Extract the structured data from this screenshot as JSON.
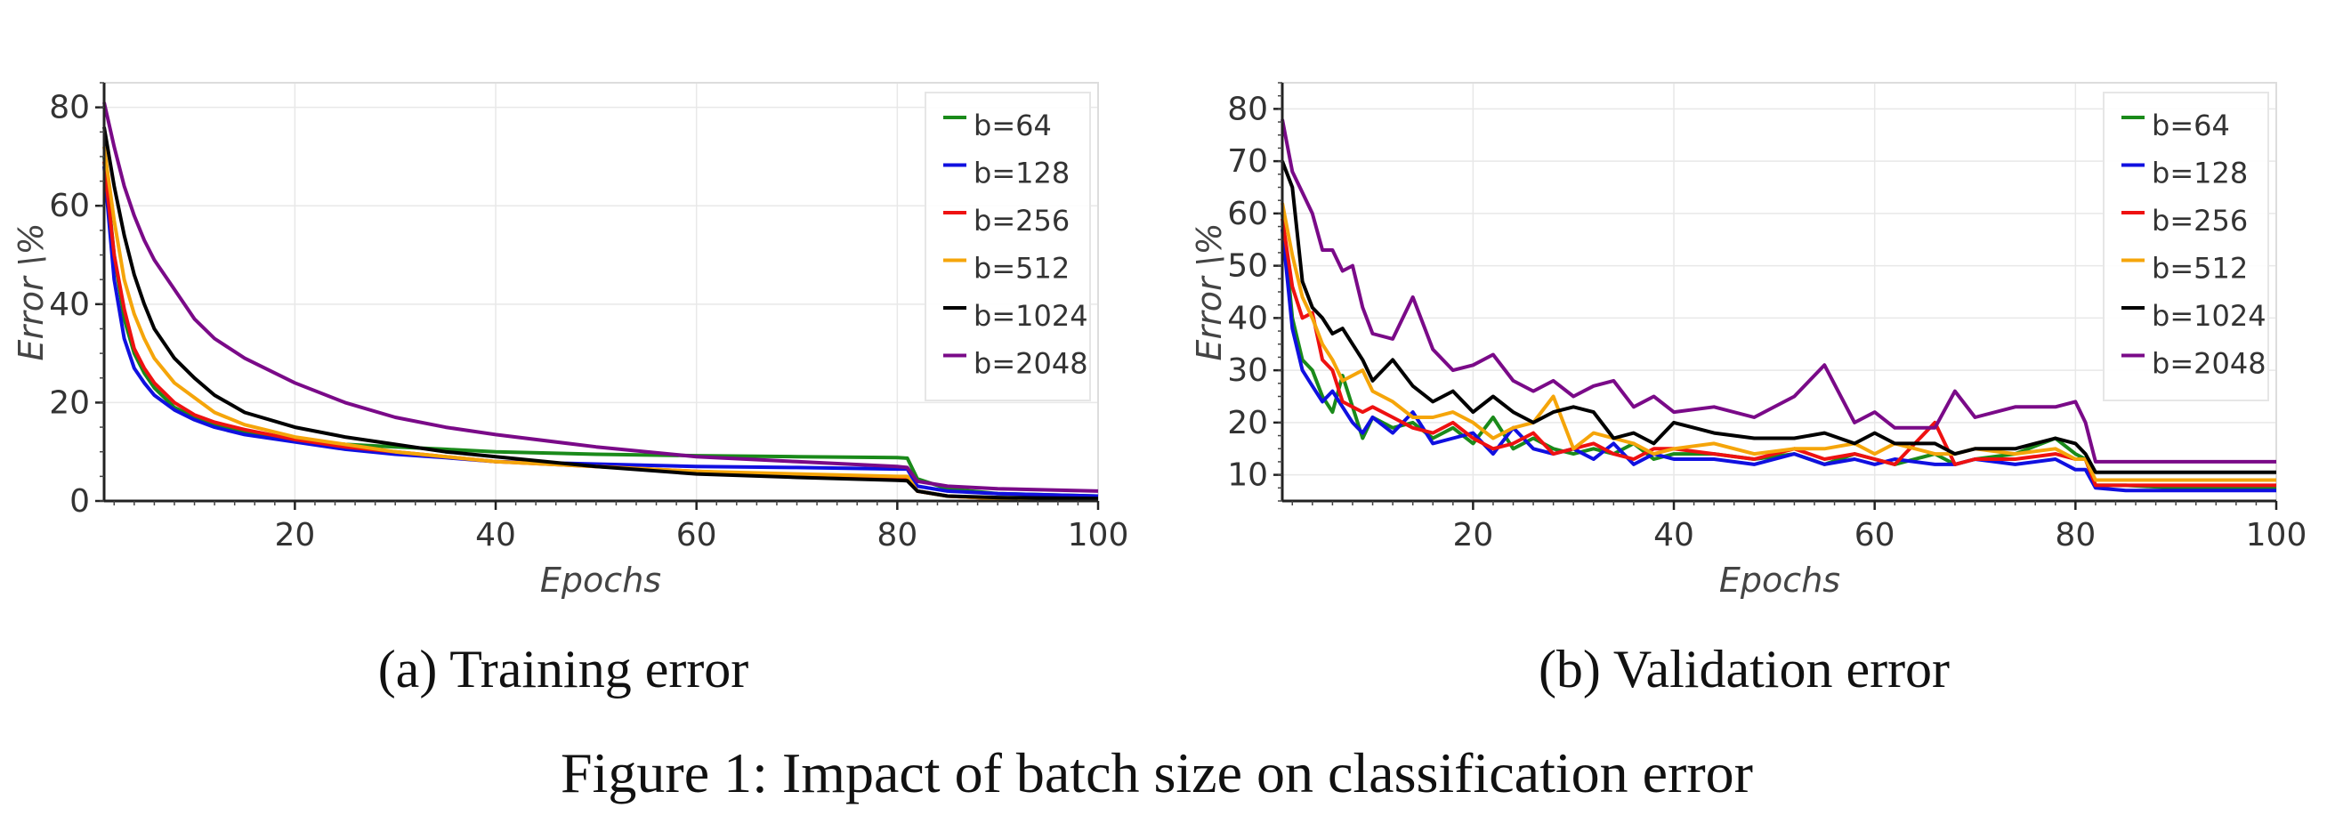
{
  "figure_caption": "Figure 1: Impact of batch size on classification error",
  "colors": {
    "b=64": "#1a8a1a",
    "b=128": "#1010e0",
    "b=256": "#ee1111",
    "b=512": "#f5a50a",
    "b=1024": "#000000",
    "b=2048": "#7a0a88"
  },
  "chart_data": [
    {
      "type": "line",
      "subcaption": "(a) Training error",
      "xlabel": "Epochs",
      "ylabel": "Error \\%",
      "xlim": [
        1,
        100
      ],
      "ylim": [
        0,
        85
      ],
      "xticks": [
        20,
        40,
        60,
        80,
        100
      ],
      "yticks": [
        0,
        20,
        40,
        60,
        80
      ],
      "grid": true,
      "legend_position": "top-right",
      "legend": [
        "b=64",
        "b=128",
        "b=256",
        "b=512",
        "b=1024",
        "b=2048"
      ],
      "x": [
        1,
        2,
        3,
        4,
        5,
        6,
        8,
        10,
        12,
        15,
        20,
        25,
        30,
        35,
        40,
        50,
        60,
        70,
        80,
        81,
        82,
        85,
        90,
        100
      ],
      "series": [
        {
          "name": "b=64",
          "values": [
            70,
            50,
            37,
            30,
            26,
            23,
            19,
            17,
            15.5,
            14,
            12.5,
            11.5,
            11,
            10.5,
            10,
            9.5,
            9.2,
            9,
            8.8,
            8.7,
            4.5,
            2.5,
            1.5,
            1.0
          ]
        },
        {
          "name": "b=128",
          "values": [
            68,
            45,
            33,
            27,
            24,
            21.5,
            18.5,
            16.5,
            15,
            13.5,
            12,
            10.5,
            9.5,
            8.8,
            8,
            7.5,
            7,
            6.8,
            6.5,
            6.5,
            3,
            2,
            1.5,
            1.0
          ]
        },
        {
          "name": "b=256",
          "values": [
            69,
            50,
            39,
            31,
            27,
            24,
            20,
            17.5,
            16,
            14.5,
            12.5,
            11,
            10,
            9,
            8,
            7,
            6,
            5.2,
            4.7,
            4.6,
            2,
            1,
            0.5,
            0.3
          ]
        },
        {
          "name": "b=512",
          "values": [
            72,
            57,
            45,
            38,
            33,
            29,
            24,
            21,
            18,
            15.5,
            13,
            11.5,
            10,
            9,
            8,
            7,
            6,
            5.5,
            5,
            5,
            2,
            1,
            0.5,
            0.3
          ]
        },
        {
          "name": "b=1024",
          "values": [
            76,
            64,
            54,
            46,
            40,
            35,
            29,
            25,
            21.5,
            18,
            15,
            13,
            11.5,
            10,
            9,
            7,
            5.5,
            4.8,
            4.2,
            4.1,
            2,
            1,
            0.7,
            0.5
          ]
        },
        {
          "name": "b=2048",
          "values": [
            81,
            72,
            64,
            58,
            53,
            49,
            43,
            37,
            33,
            29,
            24,
            20,
            17,
            15,
            13.5,
            11,
            9,
            8,
            7,
            6.8,
            4,
            3,
            2.5,
            2.0
          ]
        }
      ]
    },
    {
      "type": "line",
      "subcaption": "(b) Validation error",
      "xlabel": "Epochs",
      "ylabel": "Error \\%",
      "xlim": [
        1,
        100
      ],
      "ylim": [
        5,
        85
      ],
      "xticks": [
        20,
        40,
        60,
        80,
        100
      ],
      "yticks": [
        10,
        20,
        30,
        40,
        50,
        60,
        70,
        80
      ],
      "grid": true,
      "legend_position": "top-right",
      "legend": [
        "b=64",
        "b=128",
        "b=256",
        "b=512",
        "b=1024",
        "b=2048"
      ],
      "x": [
        1,
        2,
        3,
        4,
        5,
        6,
        7,
        8,
        9,
        10,
        12,
        14,
        16,
        18,
        20,
        22,
        24,
        26,
        28,
        30,
        32,
        34,
        36,
        38,
        40,
        44,
        48,
        52,
        55,
        58,
        60,
        62,
        66,
        68,
        70,
        74,
        78,
        80,
        81,
        82,
        85,
        90,
        100
      ],
      "series": [
        {
          "name": "b=64",
          "values": [
            60,
            40,
            32,
            30,
            25,
            22,
            29,
            23,
            17,
            21,
            19,
            20,
            17,
            19,
            16,
            21,
            15,
            17,
            15,
            14,
            15,
            14,
            16,
            13,
            14,
            14,
            13,
            14,
            12,
            14,
            13,
            12,
            14,
            12,
            13,
            14,
            17,
            14,
            13,
            8,
            8,
            7.5,
            7.5
          ]
        },
        {
          "name": "b=128",
          "values": [
            57,
            38,
            30,
            27,
            24,
            26,
            23,
            20,
            18,
            21,
            18,
            22,
            16,
            17,
            18,
            14,
            19,
            15,
            14,
            15,
            13,
            16,
            12,
            14,
            13,
            13,
            12,
            14,
            12,
            13,
            12,
            13,
            12,
            12,
            13,
            12,
            13,
            11,
            11,
            7.5,
            7,
            7,
            7
          ]
        },
        {
          "name": "b=256",
          "values": [
            59,
            46,
            40,
            41,
            32,
            30,
            24,
            23,
            22,
            23,
            21,
            19,
            18,
            20,
            17,
            15,
            16,
            18,
            14,
            15,
            16,
            14,
            13,
            15,
            15,
            14,
            13,
            15,
            13,
            14,
            13,
            12,
            20,
            12,
            13,
            13,
            14,
            13,
            13,
            8,
            8,
            8,
            8
          ]
        },
        {
          "name": "b=512",
          "values": [
            62,
            52,
            44,
            40,
            35,
            32,
            28,
            29,
            30,
            26,
            24,
            21,
            21,
            22,
            20,
            17,
            19,
            20,
            25,
            15,
            18,
            17,
            16,
            14,
            15,
            16,
            14,
            15,
            15,
            16,
            14,
            16,
            14,
            14,
            15,
            14,
            15,
            13,
            13,
            9,
            9,
            9,
            9
          ]
        },
        {
          "name": "b=1024",
          "values": [
            70,
            65,
            47,
            42,
            40,
            37,
            38,
            35,
            32,
            28,
            32,
            27,
            24,
            26,
            22,
            25,
            22,
            20,
            22,
            23,
            22,
            17,
            18,
            16,
            20,
            18,
            17,
            17,
            18,
            16,
            18,
            16,
            16,
            14,
            15,
            15,
            17,
            16,
            14,
            10.5,
            10.5,
            10.5,
            10.5
          ]
        },
        {
          "name": "b=2048",
          "values": [
            78,
            68,
            64,
            60,
            53,
            53,
            49,
            50,
            42,
            37,
            36,
            44,
            34,
            30,
            31,
            33,
            28,
            26,
            28,
            25,
            27,
            28,
            23,
            25,
            22,
            23,
            21,
            25,
            31,
            20,
            22,
            19,
            19,
            26,
            21,
            23,
            23,
            24,
            20,
            12.5,
            12.5,
            12.5,
            12.5
          ]
        }
      ]
    }
  ]
}
